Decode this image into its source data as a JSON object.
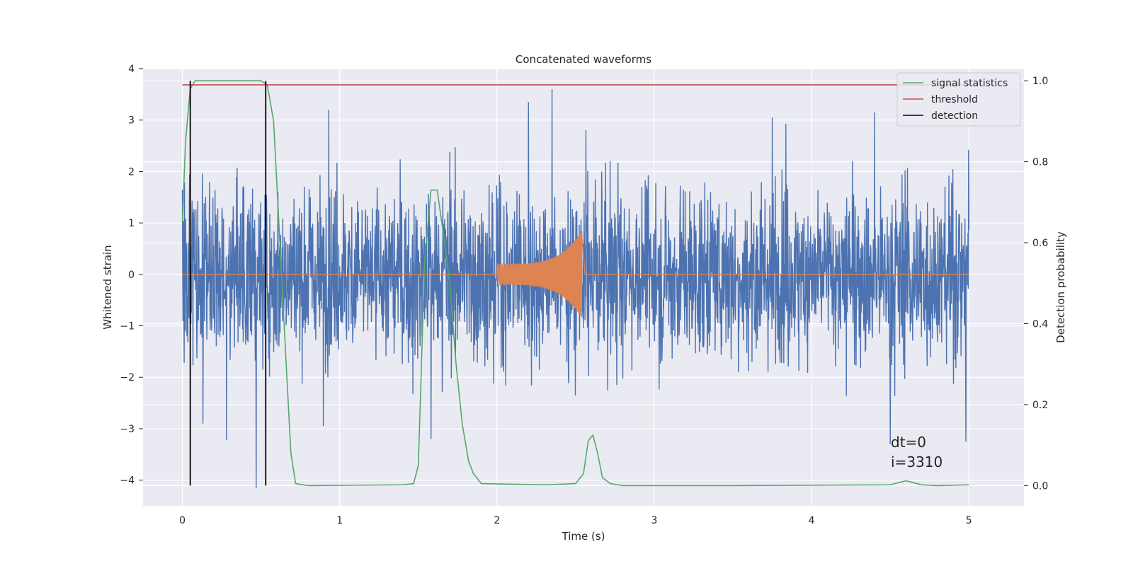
{
  "chart_data": {
    "type": "line",
    "title": "Concatenated waveforms",
    "xlabel": "Time (s)",
    "ylabel": "Whitened strain",
    "y2label": "Detection probability",
    "xlim": [
      -0.25,
      5.35
    ],
    "ylim": [
      -4.5,
      4.0
    ],
    "y2lim": [
      -0.05,
      1.03
    ],
    "xticks": [
      0,
      1,
      2,
      3,
      4,
      5
    ],
    "yticks": [
      -4,
      -3,
      -2,
      -1,
      0,
      1,
      2,
      3,
      4
    ],
    "y2ticks": [
      0.0,
      0.2,
      0.4,
      0.6,
      0.8,
      1.0
    ],
    "xtick_labels": [
      "0",
      "1",
      "2",
      "3",
      "4",
      "5"
    ],
    "ytick_labels": [
      "−4",
      "−3",
      "−2",
      "−1",
      "0",
      "1",
      "2",
      "3",
      "4"
    ],
    "y2tick_labels": [
      "0.0",
      "0.2",
      "0.4",
      "0.6",
      "0.8",
      "1.0"
    ],
    "grid": true,
    "legend_position": "top-right",
    "legend": [
      {
        "label": "signal statistics",
        "color": "#55a868"
      },
      {
        "label": "threshold",
        "color": "#c44e52"
      },
      {
        "label": "detection",
        "color": "#000000"
      }
    ],
    "annotations": [
      "dt=0",
      "i=3310"
    ],
    "series": [
      {
        "kind": "noise",
        "axis": "left",
        "color": "#4c72b0",
        "x_range": [
          0,
          5
        ],
        "typical_amplitude": 1.4,
        "peaks": [
          {
            "x": 2.35,
            "y": 3.6
          },
          {
            "x": 0.93,
            "y": 3.2
          },
          {
            "x": 2.2,
            "y": 3.35
          },
          {
            "x": 1.58,
            "y": -3.2
          },
          {
            "x": 0.47,
            "y": -4.15
          },
          {
            "x": 0.13,
            "y": -2.9
          },
          {
            "x": 4.5,
            "y": -3.3
          },
          {
            "x": 4.98,
            "y": -3.25
          },
          {
            "x": 3.75,
            "y": 3.05
          },
          {
            "x": 4.4,
            "y": 3.15
          }
        ]
      },
      {
        "kind": "chirp",
        "axis": "left",
        "color": "#dd8452",
        "x_range": [
          2.0,
          2.54
        ],
        "amplitude_start": 0.2,
        "amplitude_end": 0.85
      },
      {
        "name": "signal statistics",
        "axis": "right",
        "color": "#55a868",
        "x": [
          0,
          0.02,
          0.05,
          0.08,
          0.12,
          0.5,
          0.54,
          0.58,
          0.62,
          0.66,
          0.69,
          0.72,
          0.8,
          1.4,
          1.47,
          1.5,
          1.52,
          1.54,
          1.58,
          1.62,
          1.66,
          1.7,
          1.74,
          1.78,
          1.82,
          1.85,
          1.9,
          2.3,
          2.5,
          2.55,
          2.58,
          2.61,
          2.64,
          2.67,
          2.72,
          2.8,
          3.5,
          4.5,
          4.58,
          4.6,
          4.64,
          4.7,
          4.8,
          5.0
        ],
        "y": [
          0.65,
          0.85,
          0.98,
          1.0,
          1.0,
          1.0,
          0.99,
          0.9,
          0.6,
          0.3,
          0.08,
          0.005,
          0.0,
          0.002,
          0.005,
          0.05,
          0.3,
          0.55,
          0.73,
          0.73,
          0.62,
          0.5,
          0.3,
          0.15,
          0.06,
          0.03,
          0.005,
          0.002,
          0.005,
          0.03,
          0.11,
          0.125,
          0.08,
          0.02,
          0.005,
          0.0,
          0.0,
          0.002,
          0.01,
          0.012,
          0.008,
          0.002,
          0.0,
          0.002
        ]
      },
      {
        "name": "threshold",
        "axis": "right",
        "color": "#c44e52",
        "x": [
          0,
          5
        ],
        "y": [
          0.99,
          0.99
        ]
      },
      {
        "name": "detection",
        "axis": "right",
        "color": "#000000",
        "type": "vlines",
        "x": [
          0.05,
          0.53
        ],
        "y": [
          0,
          1.0
        ]
      }
    ]
  }
}
